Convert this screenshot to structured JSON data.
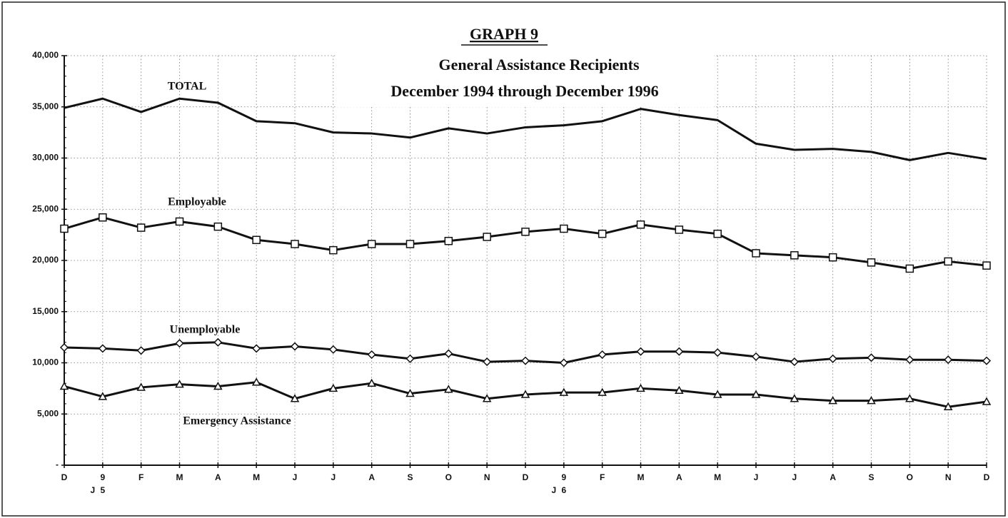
{
  "chart_data": {
    "type": "line",
    "title": "GRAPH 9",
    "subtitle": [
      "General Assistance Recipients",
      "December 1994 through  December  1996"
    ],
    "categories": [
      "D",
      "J",
      "F",
      "M",
      "A",
      "M",
      "J",
      "J",
      "A",
      "S",
      "O",
      "N",
      "D",
      "J",
      "F",
      "M",
      "A",
      "M",
      "J",
      "J",
      "A",
      "S",
      "O",
      "N",
      "D"
    ],
    "years": [
      "95",
      "96"
    ],
    "ylim": [
      0,
      40000
    ],
    "yticks": [
      {
        "value": 0,
        "label": "-"
      },
      {
        "value": 5000,
        "label": "5,000"
      },
      {
        "value": 10000,
        "label": "10,000"
      },
      {
        "value": 15000,
        "label": "15,000"
      },
      {
        "value": 20000,
        "label": "20,000"
      },
      {
        "value": 25000,
        "label": "25,000"
      },
      {
        "value": 30000,
        "label": "30,000"
      },
      {
        "value": 35000,
        "label": "35,000"
      },
      {
        "value": 40000,
        "label": "40,000"
      }
    ],
    "grid": true,
    "series": [
      {
        "name": "TOTAL",
        "color": "#111111",
        "marker": "none",
        "values": [
          34900,
          35800,
          34500,
          35800,
          35400,
          33600,
          33400,
          32500,
          32400,
          32000,
          32900,
          32400,
          33000,
          33200,
          33600,
          34800,
          34200,
          33700,
          31400,
          30800,
          30900,
          30600,
          29800,
          30500,
          29900
        ]
      },
      {
        "name": "Employable",
        "color": "#111111",
        "marker": "square",
        "values": [
          23100,
          24200,
          23200,
          23800,
          23300,
          22000,
          21600,
          21000,
          21600,
          21600,
          21900,
          22300,
          22800,
          23100,
          22600,
          23500,
          23000,
          22600,
          20700,
          20500,
          20300,
          19800,
          19200,
          19900,
          19500
        ]
      },
      {
        "name": "Unemployable",
        "color": "#111111",
        "marker": "diamond",
        "values": [
          11500,
          11400,
          11200,
          11900,
          12000,
          11400,
          11600,
          11300,
          10800,
          10400,
          10900,
          10100,
          10200,
          10000,
          10800,
          11100,
          11100,
          11000,
          10600,
          10100,
          10400,
          10500,
          10300,
          10300,
          10200
        ]
      },
      {
        "name": "Emergency Assistance",
        "color": "#111111",
        "marker": "triangle",
        "values": [
          7700,
          6700,
          7600,
          7900,
          7700,
          8100,
          6500,
          7500,
          8000,
          7000,
          7400,
          6500,
          6900,
          7100,
          7100,
          7500,
          7300,
          6900,
          6900,
          6500,
          6300,
          6300,
          6500,
          5700,
          6200
        ]
      }
    ]
  }
}
